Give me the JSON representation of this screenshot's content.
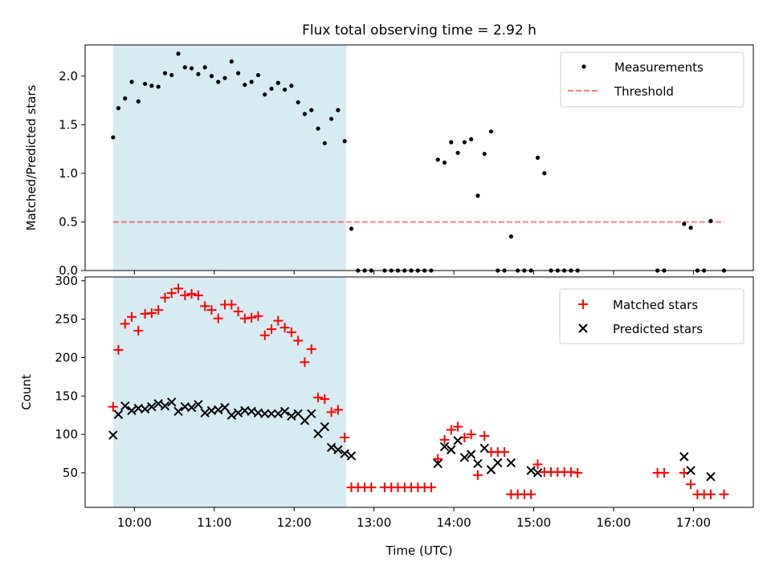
{
  "figure": {
    "title": "Flux total observing time = 2.92 h",
    "xlabel": "Time (UTC)",
    "colors": {
      "shade": "#add8e6",
      "measurements": "#000000",
      "threshold": "#ff0000",
      "matched": "#ff0000",
      "predicted": "#000000"
    }
  },
  "chart_data": [
    {
      "type": "scatter",
      "title": "Flux total observing time = 2.92 h",
      "xlabel": "",
      "ylabel": "Matched/Predicted stars",
      "xlim": [
        "09:23",
        "17:45"
      ],
      "ylim": [
        0,
        2.32
      ],
      "yticks": [
        0.0,
        0.5,
        1.0,
        1.5,
        2.0
      ],
      "ytick_labels": [
        "0.0",
        "0.5",
        "1.0",
        "1.5",
        "2.0"
      ],
      "shaded_region": {
        "start": "09:44",
        "end": "12:39"
      },
      "legend": {
        "position": "top-right",
        "entries": [
          "Measurements",
          "Threshold"
        ]
      },
      "threshold": {
        "name": "Threshold",
        "value": 0.5,
        "start": "09:44",
        "end": "17:23"
      },
      "series": [
        {
          "name": "Measurements",
          "marker": "dot",
          "x": [
            "09:44",
            "09:48",
            "09:53",
            "09:58",
            "10:03",
            "10:08",
            "10:13",
            "10:18",
            "10:23",
            "10:28",
            "10:33",
            "10:38",
            "10:43",
            "10:48",
            "10:53",
            "10:58",
            "11:03",
            "11:08",
            "11:13",
            "11:18",
            "11:23",
            "11:28",
            "11:33",
            "11:38",
            "11:43",
            "11:48",
            "11:53",
            "11:58",
            "12:03",
            "12:08",
            "12:13",
            "12:18",
            "12:23",
            "12:28",
            "12:33",
            "12:38",
            "12:43",
            "12:48",
            "12:53",
            "12:58",
            "13:08",
            "13:13",
            "13:18",
            "13:23",
            "13:28",
            "13:33",
            "13:38",
            "13:43",
            "13:48",
            "13:53",
            "13:58",
            "14:03",
            "14:08",
            "14:13",
            "14:18",
            "14:23",
            "14:28",
            "14:33",
            "14:38",
            "14:43",
            "14:48",
            "14:53",
            "14:58",
            "15:03",
            "15:08",
            "15:13",
            "15:18",
            "15:23",
            "15:28",
            "15:33",
            "16:33",
            "16:38",
            "16:53",
            "16:58",
            "17:03",
            "17:08",
            "17:13",
            "17:23"
          ],
          "y": [
            1.37,
            1.67,
            1.77,
            1.94,
            1.74,
            1.92,
            1.9,
            1.89,
            2.03,
            2.01,
            2.23,
            2.09,
            2.08,
            2.02,
            2.09,
            2.0,
            1.94,
            1.98,
            2.15,
            2.03,
            1.91,
            1.94,
            2.01,
            1.81,
            1.87,
            1.93,
            1.86,
            1.9,
            1.73,
            1.61,
            1.65,
            1.46,
            1.31,
            1.56,
            1.65,
            1.33,
            0.43,
            0.0,
            0.0,
            0.0,
            0.0,
            0.0,
            0.0,
            0.0,
            0.0,
            0.0,
            0.0,
            0.0,
            1.14,
            1.11,
            1.32,
            1.21,
            1.32,
            1.35,
            0.77,
            1.2,
            1.43,
            0.0,
            0.0,
            0.35,
            0.0,
            0.0,
            0.0,
            1.16,
            1.0,
            0.0,
            0.0,
            0.0,
            0.0,
            0.0,
            0.0,
            0.0,
            0.48,
            0.44,
            0.0,
            0.0,
            0.51,
            0.0
          ]
        }
      ]
    },
    {
      "type": "scatter",
      "xlabel": "Time (UTC)",
      "ylabel": "Count",
      "xlim": [
        "09:23",
        "17:45"
      ],
      "ylim": [
        5,
        305
      ],
      "yticks": [
        50,
        100,
        150,
        200,
        250,
        300
      ],
      "ytick_labels": [
        "50",
        "100",
        "150",
        "200",
        "250",
        "300"
      ],
      "xticks": [
        "10:00",
        "11:00",
        "12:00",
        "13:00",
        "14:00",
        "15:00",
        "16:00",
        "17:00"
      ],
      "xtick_labels": [
        "10:00",
        "11:00",
        "12:00",
        "13:00",
        "14:00",
        "15:00",
        "16:00",
        "17:00"
      ],
      "shaded_region": {
        "start": "09:44",
        "end": "12:39"
      },
      "legend": {
        "position": "top-right",
        "entries": [
          "Matched stars",
          "Predicted stars"
        ]
      },
      "series": [
        {
          "name": "Matched stars",
          "marker": "plus",
          "x": [
            "09:44",
            "09:48",
            "09:53",
            "09:58",
            "10:03",
            "10:08",
            "10:13",
            "10:18",
            "10:23",
            "10:28",
            "10:33",
            "10:38",
            "10:43",
            "10:48",
            "10:53",
            "10:58",
            "11:03",
            "11:08",
            "11:13",
            "11:18",
            "11:23",
            "11:28",
            "11:33",
            "11:38",
            "11:43",
            "11:48",
            "11:53",
            "11:58",
            "12:03",
            "12:08",
            "12:13",
            "12:18",
            "12:23",
            "12:28",
            "12:33",
            "12:38",
            "12:43",
            "12:48",
            "12:53",
            "12:58",
            "13:08",
            "13:13",
            "13:18",
            "13:23",
            "13:28",
            "13:33",
            "13:38",
            "13:43",
            "13:48",
            "13:53",
            "13:58",
            "14:03",
            "14:08",
            "14:13",
            "14:18",
            "14:23",
            "14:28",
            "14:33",
            "14:38",
            "14:43",
            "14:48",
            "14:53",
            "14:58",
            "15:03",
            "15:08",
            "15:13",
            "15:18",
            "15:23",
            "15:28",
            "15:33",
            "16:33",
            "16:38",
            "16:53",
            "16:58",
            "17:03",
            "17:08",
            "17:13",
            "17:23"
          ],
          "y": [
            136,
            210,
            244,
            253,
            235,
            257,
            258,
            262,
            278,
            284,
            290,
            281,
            283,
            281,
            267,
            262,
            251,
            269,
            269,
            260,
            251,
            252,
            254,
            229,
            237,
            248,
            239,
            233,
            222,
            194,
            211,
            148,
            146,
            129,
            132,
            96,
            31,
            31,
            31,
            31,
            31,
            31,
            31,
            31,
            31,
            31,
            31,
            31,
            68,
            93,
            106,
            110,
            96,
            100,
            47,
            98,
            77,
            77,
            77,
            22,
            22,
            22,
            22,
            61,
            51,
            51,
            51,
            51,
            51,
            50,
            50,
            50,
            50,
            35,
            22,
            22,
            22,
            22
          ]
        },
        {
          "name": "Predicted stars",
          "marker": "x",
          "x": [
            "09:44",
            "09:48",
            "09:53",
            "09:58",
            "10:03",
            "10:08",
            "10:13",
            "10:18",
            "10:23",
            "10:28",
            "10:33",
            "10:38",
            "10:43",
            "10:48",
            "10:53",
            "10:58",
            "11:03",
            "11:08",
            "11:13",
            "11:18",
            "11:23",
            "11:28",
            "11:33",
            "11:38",
            "11:43",
            "11:48",
            "11:53",
            "11:58",
            "12:03",
            "12:08",
            "12:13",
            "12:18",
            "12:23",
            "12:28",
            "12:33",
            "12:38",
            "12:43",
            "13:48",
            "13:53",
            "13:58",
            "14:03",
            "14:08",
            "14:13",
            "14:18",
            "14:23",
            "14:28",
            "14:33",
            "14:43",
            "14:58",
            "15:03",
            "16:53",
            "16:58",
            "17:13"
          ],
          "y": [
            99,
            126,
            137,
            131,
            134,
            133,
            136,
            140,
            137,
            142,
            130,
            136,
            135,
            139,
            128,
            131,
            132,
            135,
            125,
            128,
            131,
            130,
            128,
            127,
            127,
            127,
            130,
            124,
            127,
            118,
            127,
            101,
            110,
            83,
            80,
            75,
            72,
            62,
            84,
            80,
            92,
            70,
            74,
            62,
            82,
            54,
            63,
            63,
            53,
            50,
            71,
            53,
            45
          ]
        }
      ]
    }
  ]
}
